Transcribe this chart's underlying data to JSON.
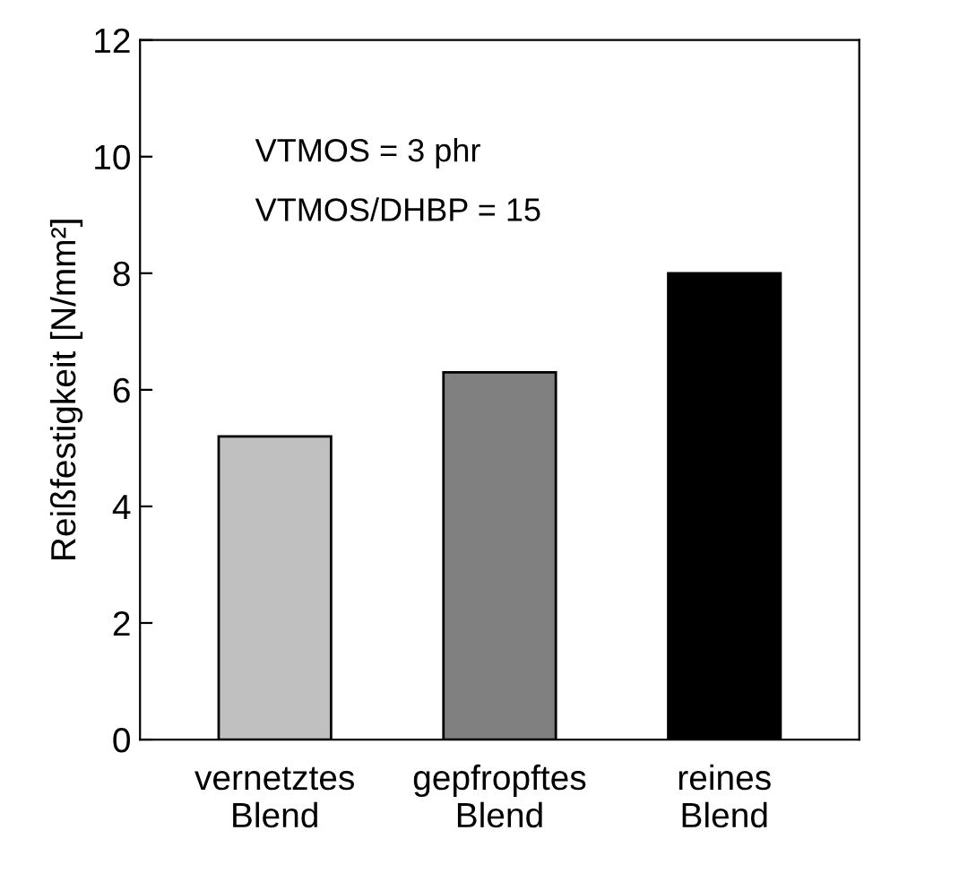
{
  "chart_data": {
    "type": "bar",
    "ylabel": "Reißfestigkeit [N/mm²]",
    "categories": [
      "vernetztes\nBlend",
      "gepfropftes\nBlend",
      "reines\nBlend"
    ],
    "values": [
      5.2,
      6.3,
      8.0
    ],
    "colors": [
      "#c0c0c0",
      "#808080",
      "#000000"
    ],
    "ylim": [
      0,
      12
    ],
    "yticks": [
      0,
      2,
      4,
      6,
      8,
      10,
      12
    ],
    "grid": false,
    "annotations": [
      "VTMOS = 3 phr",
      "VTMOS/DHBP = 15"
    ]
  }
}
